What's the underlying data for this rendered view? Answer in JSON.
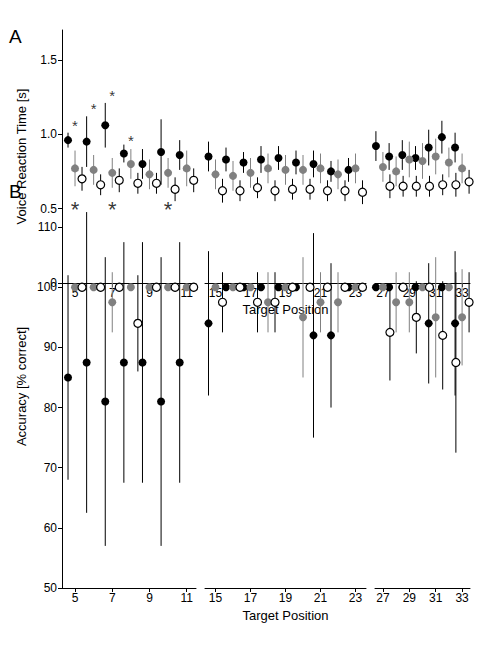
{
  "chart_data": [
    {
      "type": "scatter",
      "label": "A",
      "x_label": "Target Position",
      "y_label": "Voice Reaction Time [s]",
      "xlim": [
        [
          4.3,
          11.5
        ],
        [
          14.4,
          23.6
        ],
        [
          26.4,
          33.6
        ]
      ],
      "xticks": [
        [
          5,
          7,
          9,
          11
        ],
        [
          15,
          17,
          19,
          21,
          23
        ],
        [
          27,
          29,
          31,
          33
        ]
      ],
      "ylim": [
        0,
        1.7
      ],
      "yticks": [
        0,
        0.5,
        {
          "value": 1,
          "label": "1.0"
        },
        1.5
      ],
      "x": [
        5,
        6,
        7,
        8,
        9,
        10,
        11,
        15,
        16,
        17,
        18,
        19,
        20,
        21,
        22,
        23,
        27,
        28,
        29,
        30,
        31,
        32,
        33
      ],
      "series": [
        {
          "color": "#000000",
          "marker": "circle",
          "values": [
            0.96,
            0.95,
            1.06,
            0.87,
            0.8,
            0.88,
            0.86,
            0.85,
            0.83,
            0.81,
            0.83,
            0.84,
            0.81,
            0.8,
            0.75,
            0.76,
            0.92,
            0.85,
            0.86,
            0.84,
            0.91,
            0.98,
            0.91
          ],
          "errors": [
            0.05,
            0.17,
            0.15,
            0.06,
            0.1,
            0.22,
            0.1,
            0.1,
            0.08,
            0.07,
            0.09,
            0.08,
            0.08,
            0.09,
            0.07,
            0.08,
            0.1,
            0.09,
            0.1,
            0.08,
            0.12,
            0.11,
            0.1
          ]
        },
        {
          "color": "#808080",
          "marker": "circle",
          "values": [
            0.77,
            0.76,
            0.74,
            0.8,
            0.73,
            0.74,
            0.77,
            0.73,
            0.72,
            0.74,
            0.77,
            0.76,
            0.76,
            0.77,
            0.73,
            0.77,
            0.78,
            0.75,
            0.83,
            0.82,
            0.85,
            0.81,
            0.77
          ],
          "errors": [
            0.12,
            0.1,
            0.1,
            0.1,
            0.1,
            0.1,
            0.12,
            0.1,
            0.1,
            0.1,
            0.1,
            0.1,
            0.1,
            0.1,
            0.1,
            0.1,
            0.1,
            0.1,
            0.12,
            0.12,
            0.12,
            0.1,
            0.1
          ]
        },
        {
          "color": "#000000",
          "marker": "open circle",
          "values": [
            0.7,
            0.66,
            0.69,
            0.67,
            0.67,
            0.63,
            0.69,
            0.62,
            0.62,
            0.64,
            0.62,
            0.63,
            0.63,
            0.62,
            0.62,
            0.61,
            0.65,
            0.65,
            0.65,
            0.65,
            0.66,
            0.66,
            0.68
          ],
          "errors": [
            0.08,
            0.07,
            0.08,
            0.07,
            0.07,
            0.08,
            0.08,
            0.08,
            0.07,
            0.07,
            0.07,
            0.07,
            0.07,
            0.07,
            0.07,
            0.08,
            0.08,
            0.07,
            0.07,
            0.07,
            0.07,
            0.08,
            0.08
          ]
        }
      ],
      "annotations": [
        {
          "text": "*",
          "x": 5,
          "y": 1.06
        },
        {
          "text": "*",
          "x": 6,
          "y": 1.17
        },
        {
          "text": "*",
          "x": 7,
          "y": 1.26
        },
        {
          "text": "*",
          "x": 8,
          "y": 0.96
        }
      ]
    },
    {
      "type": "scatter",
      "label": "B",
      "x_label": "Target Position",
      "y_label": "Accuracy [% correct]",
      "xlim": [
        [
          4.3,
          11.5
        ],
        [
          14.4,
          23.6
        ],
        [
          26.4,
          33.6
        ]
      ],
      "xticks": [
        [
          5,
          7,
          9,
          11
        ],
        [
          15,
          17,
          19,
          21,
          23
        ],
        [
          27,
          29,
          31,
          33
        ]
      ],
      "ylim": [
        50,
        117
      ],
      "yticks": [
        50,
        60,
        70,
        80,
        90,
        100,
        110
      ],
      "x": [
        5,
        6,
        7,
        8,
        9,
        10,
        11,
        15,
        16,
        17,
        18,
        19,
        20,
        21,
        22,
        23,
        27,
        28,
        29,
        30,
        31,
        32,
        33
      ],
      "series": [
        {
          "color": "#000000",
          "marker": "circle",
          "values": [
            85,
            87.5,
            81,
            87.5,
            87.5,
            81,
            87.5,
            94,
            100,
            100,
            100,
            100,
            100,
            92,
            92,
            100,
            100,
            100,
            100,
            100,
            94,
            100,
            94
          ],
          "errors": [
            17,
            25,
            24,
            20,
            20,
            24,
            20,
            12,
            0,
            0,
            0,
            0,
            0,
            17,
            12,
            0,
            0,
            0,
            0,
            0,
            10,
            0,
            12
          ]
        },
        {
          "color": "#808080",
          "marker": "circle",
          "values": [
            100,
            100,
            97.5,
            100,
            100,
            100,
            100,
            100,
            100,
            100,
            97.5,
            100,
            95,
            97.5,
            97.5,
            100,
            100,
            97.5,
            97.5,
            100,
            95,
            100,
            95
          ],
          "errors": [
            0,
            0,
            5,
            0,
            0,
            0,
            0,
            0,
            0,
            0,
            5,
            0,
            10,
            5,
            5,
            0,
            0,
            5,
            5,
            0,
            10,
            0,
            8
          ]
        },
        {
          "color": "#000000",
          "marker": "open circle",
          "values": [
            100,
            100,
            100,
            94,
            100,
            100,
            100,
            97.5,
            100,
            97.5,
            97.5,
            100,
            100,
            100,
            100,
            100,
            92.5,
            100,
            95,
            100,
            92,
            87.5,
            97.5
          ],
          "errors": [
            0,
            0,
            0,
            8,
            0,
            0,
            0,
            5,
            0,
            5,
            5,
            0,
            0,
            0,
            0,
            0,
            8,
            0,
            6,
            0,
            9,
            15,
            5
          ]
        }
      ],
      "annotations": [
        {
          "text": "*",
          "x": 5,
          "y": 113
        },
        {
          "text": "*",
          "x": 7,
          "y": 113
        },
        {
          "text": "*",
          "x": 10,
          "y": 113
        }
      ]
    }
  ]
}
